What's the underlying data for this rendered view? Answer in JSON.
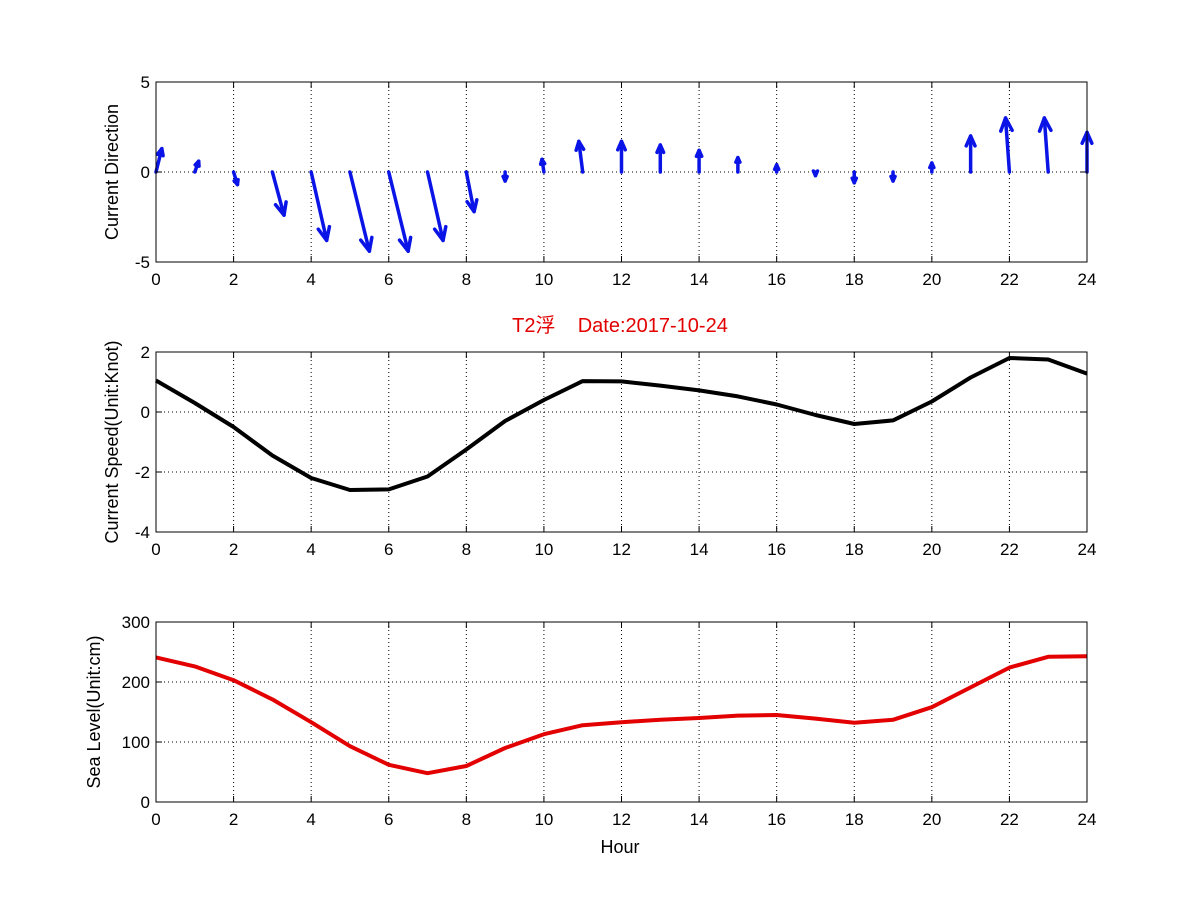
{
  "colors": {
    "vectors": "#0a14e6",
    "speed_line": "#000000",
    "sea_level_line": "#e30000",
    "title": "#e30000",
    "grid": "#000000",
    "background": "#ffffff"
  },
  "chart_data": [
    {
      "type": "quiver",
      "ylabel": "Current Direction",
      "xlim": [
        0,
        24
      ],
      "ylim": [
        -5,
        5
      ],
      "xticks": [
        "0",
        "2",
        "4",
        "6",
        "8",
        "10",
        "12",
        "14",
        "16",
        "18",
        "20",
        "22",
        "24"
      ],
      "yticks": [
        "-5",
        "0",
        "5"
      ],
      "grid": true,
      "x": [
        0,
        1,
        2,
        3,
        4,
        5,
        6,
        7,
        8,
        9,
        10,
        11,
        12,
        13,
        14,
        15,
        16,
        17,
        18,
        19,
        20,
        21,
        22,
        23,
        24
      ],
      "u": [
        0.15,
        0.1,
        0.1,
        0.3,
        0.4,
        0.5,
        0.5,
        0.4,
        0.2,
        0.0,
        -0.05,
        -0.1,
        0.0,
        0.0,
        0.0,
        0.0,
        0.0,
        0.0,
        0.0,
        0.0,
        0.0,
        0.0,
        -0.1,
        -0.1,
        0.0
      ],
      "v": [
        1.3,
        0.6,
        -0.7,
        -2.4,
        -3.8,
        -4.4,
        -4.4,
        -3.8,
        -2.2,
        -0.5,
        0.7,
        1.7,
        1.7,
        1.5,
        1.2,
        0.8,
        0.4,
        -0.2,
        -0.6,
        -0.5,
        0.5,
        2.0,
        3.0,
        3.0,
        2.2
      ]
    },
    {
      "type": "line",
      "title": "T2浮    Date:2017-10-24",
      "ylabel": "Current Speed(Unit:Knot)",
      "xlim": [
        0,
        24
      ],
      "ylim": [
        -4,
        2
      ],
      "xticks": [
        "0",
        "2",
        "4",
        "6",
        "8",
        "10",
        "12",
        "14",
        "16",
        "18",
        "20",
        "22",
        "24"
      ],
      "yticks": [
        "-4",
        "-2",
        "0",
        "2"
      ],
      "grid": true,
      "x": [
        0,
        1,
        2,
        3,
        4,
        5,
        6,
        7,
        8,
        9,
        10,
        11,
        12,
        13,
        14,
        15,
        16,
        17,
        18,
        19,
        20,
        21,
        22,
        23,
        24
      ],
      "y": [
        1.05,
        0.3,
        -0.5,
        -1.45,
        -2.2,
        -2.6,
        -2.58,
        -2.15,
        -1.25,
        -0.3,
        0.4,
        1.03,
        1.02,
        0.88,
        0.72,
        0.52,
        0.25,
        -0.1,
        -0.4,
        -0.28,
        0.35,
        1.15,
        1.8,
        1.75,
        1.28
      ]
    },
    {
      "type": "line",
      "xlabel": "Hour",
      "ylabel": "Sea Level(Unit:cm)",
      "xlim": [
        0,
        24
      ],
      "ylim": [
        0,
        300
      ],
      "xticks": [
        "0",
        "2",
        "4",
        "6",
        "8",
        "10",
        "12",
        "14",
        "16",
        "18",
        "20",
        "22",
        "24"
      ],
      "yticks": [
        "0",
        "100",
        "200",
        "300"
      ],
      "grid": true,
      "x": [
        0,
        1,
        2,
        3,
        4,
        5,
        6,
        7,
        8,
        9,
        10,
        11,
        12,
        13,
        14,
        15,
        16,
        17,
        18,
        19,
        20,
        21,
        22,
        23,
        24
      ],
      "y": [
        241,
        226,
        203,
        171,
        133,
        93,
        62,
        48,
        60,
        90,
        113,
        128,
        133,
        137,
        140,
        144,
        145,
        139,
        132,
        137,
        158,
        191,
        224,
        242,
        243
      ]
    }
  ]
}
